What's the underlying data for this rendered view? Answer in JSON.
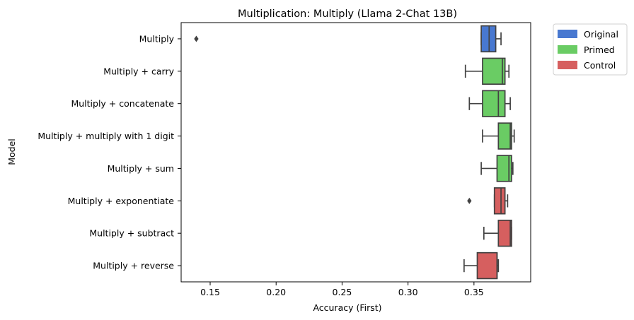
{
  "chart_data": {
    "type": "boxplot",
    "title": "Multiplication: Multiply (Llama 2-Chat 13B)",
    "xlabel": "Accuracy (First)",
    "ylabel": "Model",
    "xlim": [
      0.128,
      0.393
    ],
    "xticks": [
      "0.15",
      "0.20",
      "0.25",
      "0.30",
      "0.35"
    ],
    "xtick_values": [
      0.15,
      0.2,
      0.25,
      0.3,
      0.35
    ],
    "grid": false,
    "legend": {
      "placement": "outside-top-right",
      "entries": [
        {
          "label": "Original",
          "color": "#4878d0"
        },
        {
          "label": "Primed",
          "color": "#6acc64"
        },
        {
          "label": "Control",
          "color": "#d65f5f"
        }
      ]
    },
    "categories": [
      "Multiply",
      "Multiply + carry",
      "Multiply + concatenate",
      "Multiply + multiply with 1 digit",
      "Multiply + sum",
      "Multiply + exponentiate",
      "Multiply + subtract",
      "Multiply + reverse"
    ],
    "boxes": [
      {
        "group": "Original",
        "whisker_low": 0.3555,
        "q1": 0.3555,
        "median": 0.3615,
        "q3": 0.3665,
        "whisker_high": 0.3705,
        "outliers": [
          0.1395
        ]
      },
      {
        "group": "Primed",
        "whisker_low": 0.3435,
        "q1": 0.3565,
        "median": 0.3715,
        "q3": 0.3735,
        "whisker_high": 0.3765,
        "outliers": []
      },
      {
        "group": "Primed",
        "whisker_low": 0.3465,
        "q1": 0.3565,
        "median": 0.3685,
        "q3": 0.3735,
        "whisker_high": 0.3775,
        "outliers": []
      },
      {
        "group": "Primed",
        "whisker_low": 0.3565,
        "q1": 0.3685,
        "median": 0.3775,
        "q3": 0.3785,
        "whisker_high": 0.3805,
        "outliers": []
      },
      {
        "group": "Primed",
        "whisker_low": 0.3555,
        "q1": 0.3675,
        "median": 0.3765,
        "q3": 0.3785,
        "whisker_high": 0.3795,
        "outliers": []
      },
      {
        "group": "Control",
        "whisker_low": 0.3655,
        "q1": 0.3655,
        "median": 0.3705,
        "q3": 0.3735,
        "whisker_high": 0.3755,
        "outliers": [
          0.3465
        ]
      },
      {
        "group": "Control",
        "whisker_low": 0.3575,
        "q1": 0.3685,
        "median": 0.3775,
        "q3": 0.3785,
        "whisker_high": 0.3785,
        "outliers": []
      },
      {
        "group": "Control",
        "whisker_low": 0.3425,
        "q1": 0.3525,
        "median": 0.3675,
        "q3": 0.3675,
        "whisker_high": 0.3685,
        "outliers": []
      }
    ]
  }
}
